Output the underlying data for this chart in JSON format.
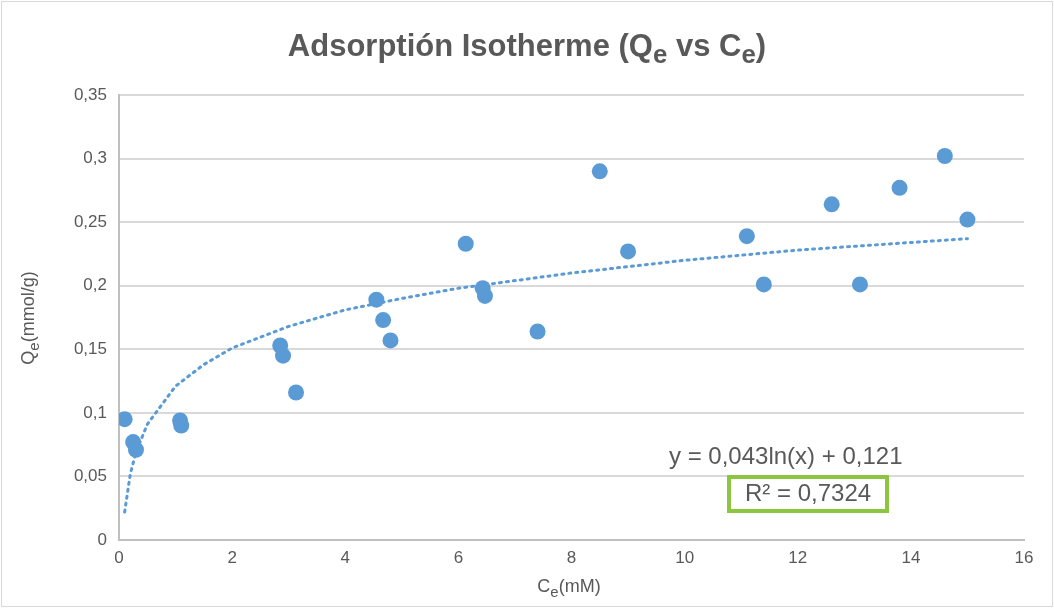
{
  "chart_data": {
    "type": "scatter",
    "title": "Adsorptión Isotherme (Q$_{e}$ vs C$_{e}$)",
    "xlabel": "C$_{e}$(mM)",
    "ylabel": "Q$_{e}$(mmol/g)",
    "xlim": [
      0,
      16
    ],
    "xticks": [
      0,
      2,
      4,
      6,
      8,
      10,
      12,
      14,
      16
    ],
    "ylim": [
      0,
      0.35
    ],
    "yticks": [
      {
        "value": 0,
        "label": "0"
      },
      {
        "value": 0.05,
        "label": "0,05"
      },
      {
        "value": 0.1,
        "label": "0,1"
      },
      {
        "value": 0.15,
        "label": "0,15"
      },
      {
        "value": 0.2,
        "label": "0,2"
      },
      {
        "value": 0.25,
        "label": "0,25"
      },
      {
        "value": 0.3,
        "label": "0,3"
      },
      {
        "value": 0.35,
        "label": "0,35"
      }
    ],
    "grid": "y",
    "legend": false,
    "marker": "circle",
    "series": [
      {
        "type": "scatter",
        "color": "#5b9bd5",
        "x": [
          0.1,
          0.25,
          0.3,
          1.08,
          1.1,
          2.85,
          2.9,
          3.13,
          4.55,
          4.67,
          4.8,
          6.13,
          6.43,
          6.47,
          7.4,
          8.5,
          9.0,
          11.1,
          11.4,
          12.6,
          13.1,
          13.8,
          14.6,
          15.0
        ],
        "values": [
          0.095,
          0.077,
          0.071,
          0.094,
          0.09,
          0.153,
          0.145,
          0.116,
          0.189,
          0.173,
          0.157,
          0.233,
          0.198,
          0.192,
          0.164,
          0.29,
          0.227,
          0.239,
          0.201,
          0.264,
          0.201,
          0.277,
          0.302,
          0.252
        ]
      },
      {
        "type": "line",
        "color": "#5b9bd5",
        "line_style": "dotted",
        "marker": "none",
        "x": [
          0.1,
          0.2,
          0.3,
          0.5,
          1,
          1.5,
          2,
          3,
          4,
          5,
          6,
          8,
          10,
          12,
          15
        ],
        "values": [
          0.022,
          0.052,
          0.069,
          0.091,
          0.121,
          0.138,
          0.151,
          0.168,
          0.181,
          0.19,
          0.198,
          0.21,
          0.22,
          0.228,
          0.237
        ]
      }
    ],
    "annotations": [
      "y = 0,043ln(x) + 0,121",
      "R² = 0,7324"
    ]
  }
}
